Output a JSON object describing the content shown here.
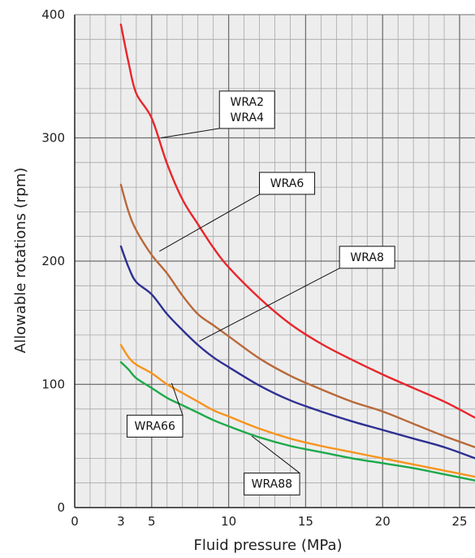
{
  "chart_data": {
    "type": "line",
    "title": "",
    "xlabel": "Fluid pressure (MPa)",
    "ylabel": "Allowable rotations (rpm)",
    "xlim": [
      0,
      26
    ],
    "ylim": [
      0,
      400
    ],
    "xticks": [
      0,
      3,
      5,
      10,
      15,
      20,
      25
    ],
    "yticks": [
      0,
      100,
      200,
      300,
      400
    ],
    "grid": true,
    "legend": "none",
    "series": [
      {
        "name": "WRA2 WRA4",
        "label_lines": [
          "WRA2",
          "WRA4"
        ],
        "color": "#e8262b",
        "x": [
          3,
          3.5,
          4,
          5,
          6,
          7,
          8,
          9,
          10,
          12,
          14,
          16,
          18,
          20,
          22,
          24,
          26
        ],
        "y": [
          392,
          361,
          336,
          316,
          279,
          250,
          230,
          211,
          195,
          170,
          149,
          133,
          120,
          108,
          97,
          86,
          73
        ]
      },
      {
        "name": "WRA6",
        "label_lines": [
          "WRA6"
        ],
        "color": "#b8693a",
        "x": [
          3,
          3.5,
          4,
          5,
          6,
          7,
          8,
          9,
          10,
          12,
          14,
          16,
          18,
          20,
          22,
          24,
          26
        ],
        "y": [
          262,
          240,
          225,
          205,
          190,
          172,
          157,
          148,
          139,
          121,
          107,
          96,
          86,
          78,
          68,
          58,
          49
        ]
      },
      {
        "name": "WRA8",
        "label_lines": [
          "WRA8"
        ],
        "color": "#2e3192",
        "x": [
          3,
          3.5,
          4,
          5,
          6,
          7,
          8,
          9,
          10,
          12,
          14,
          16,
          18,
          20,
          22,
          24,
          26
        ],
        "y": [
          212,
          195,
          183,
          173,
          157,
          144,
          132,
          122,
          114,
          99,
          87,
          78,
          70,
          63,
          56,
          49,
          40
        ]
      },
      {
        "name": "WRA66",
        "label_lines": [
          "WRA66"
        ],
        "color": "#f7941d",
        "x": [
          3,
          3.5,
          4,
          5,
          6,
          7,
          8,
          9,
          10,
          12,
          14,
          16,
          18,
          20,
          22,
          24,
          26
        ],
        "y": [
          132,
          122,
          116,
          109,
          100,
          93,
          86,
          79,
          74,
          64,
          56,
          50,
          45,
          40,
          35,
          30,
          25
        ]
      },
      {
        "name": "WRA88",
        "label_lines": [
          "WRA88"
        ],
        "color": "#1daa4b",
        "x": [
          3,
          3.5,
          4,
          5,
          6,
          7,
          8,
          9,
          10,
          12,
          14,
          16,
          18,
          20,
          22,
          24,
          26
        ],
        "y": [
          118,
          112,
          105,
          97,
          89,
          83,
          77,
          71,
          66,
          57,
          50,
          45,
          40,
          36,
          32,
          27,
          22
        ]
      }
    ],
    "annotations": [
      {
        "series_index": 0,
        "text_lines": [
          "WRA2",
          "WRA4"
        ],
        "point_x": 5.6,
        "point_y": 300,
        "box_x": 9.4,
        "box_y": 338
      },
      {
        "series_index": 1,
        "text_lines": [
          "WRA6"
        ],
        "point_x": 5.5,
        "point_y": 208,
        "box_x": 12.0,
        "box_y": 272
      },
      {
        "series_index": 2,
        "text_lines": [
          "WRA8"
        ],
        "point_x": 8.1,
        "point_y": 135,
        "box_x": 17.2,
        "box_y": 212
      },
      {
        "series_index": 3,
        "text_lines": [
          "WRA66"
        ],
        "point_x": 6.3,
        "point_y": 101,
        "box_x": 3.4,
        "box_y": 75
      },
      {
        "series_index": 4,
        "text_lines": [
          "WRA88"
        ],
        "point_x": 11.5,
        "point_y": 58,
        "box_x": 11.0,
        "box_y": 28
      }
    ]
  }
}
